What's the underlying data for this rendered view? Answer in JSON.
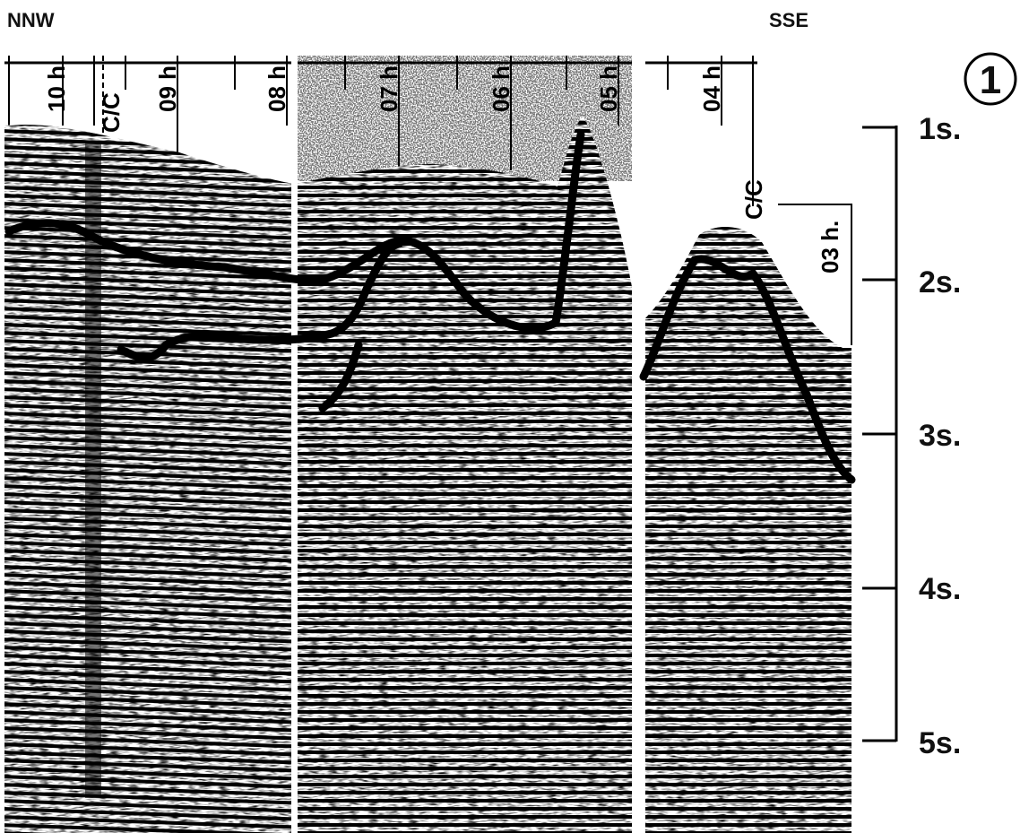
{
  "direction": {
    "left": "NNW",
    "right": "SSE"
  },
  "figure_number": "1",
  "time_marks": [
    "10 h",
    "09 h",
    "08 h",
    "07 h",
    "06 h",
    "05 h",
    "04 h",
    "03 h."
  ],
  "course_change_labels": [
    "C/C",
    "C/C"
  ],
  "twt_scale": {
    "ticks": [
      "1s.",
      "2s.",
      "3s.",
      "4s.",
      "5s."
    ]
  },
  "colors": {
    "ink": "#000000",
    "paper": "#ffffff"
  }
}
